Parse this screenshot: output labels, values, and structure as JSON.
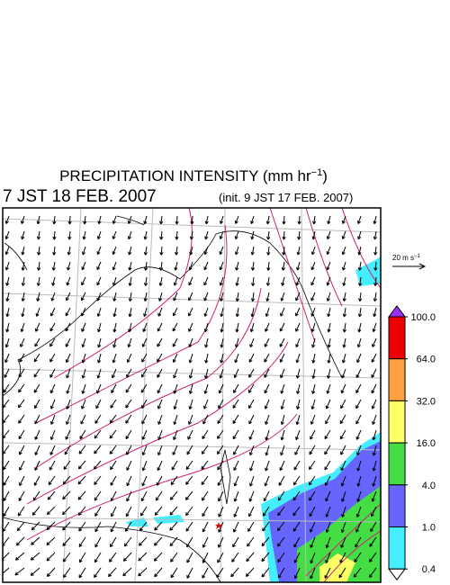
{
  "header": {
    "title": {
      "text": "PRECIPITATION INTENSITY (mm hr",
      "exponent": "−1",
      "close": ")"
    },
    "valid_time": "7 JST 18 FEB. 2007",
    "init_time": "(init. 9 JST 17 FEB. 2007)"
  },
  "vector_key": {
    "text": "20 m s",
    "exponent": "−1"
  },
  "colorbar": {
    "levels": [
      {
        "value": 100,
        "label": "100.0"
      },
      {
        "value": 64,
        "label": "64.0"
      },
      {
        "value": 32,
        "label": "32.0"
      },
      {
        "value": 16,
        "label": "16.0"
      },
      {
        "value": 4,
        "label": "4.0"
      },
      {
        "value": 1,
        "label": "1.0"
      },
      {
        "value": 0.4,
        "label": "0.4"
      }
    ],
    "colors": [
      "#9b30ff",
      "#ee0000",
      "#ffa040",
      "#ffff66",
      "#44dd44",
      "#6666ff",
      "#44eeff",
      "#ffffff"
    ]
  }
}
